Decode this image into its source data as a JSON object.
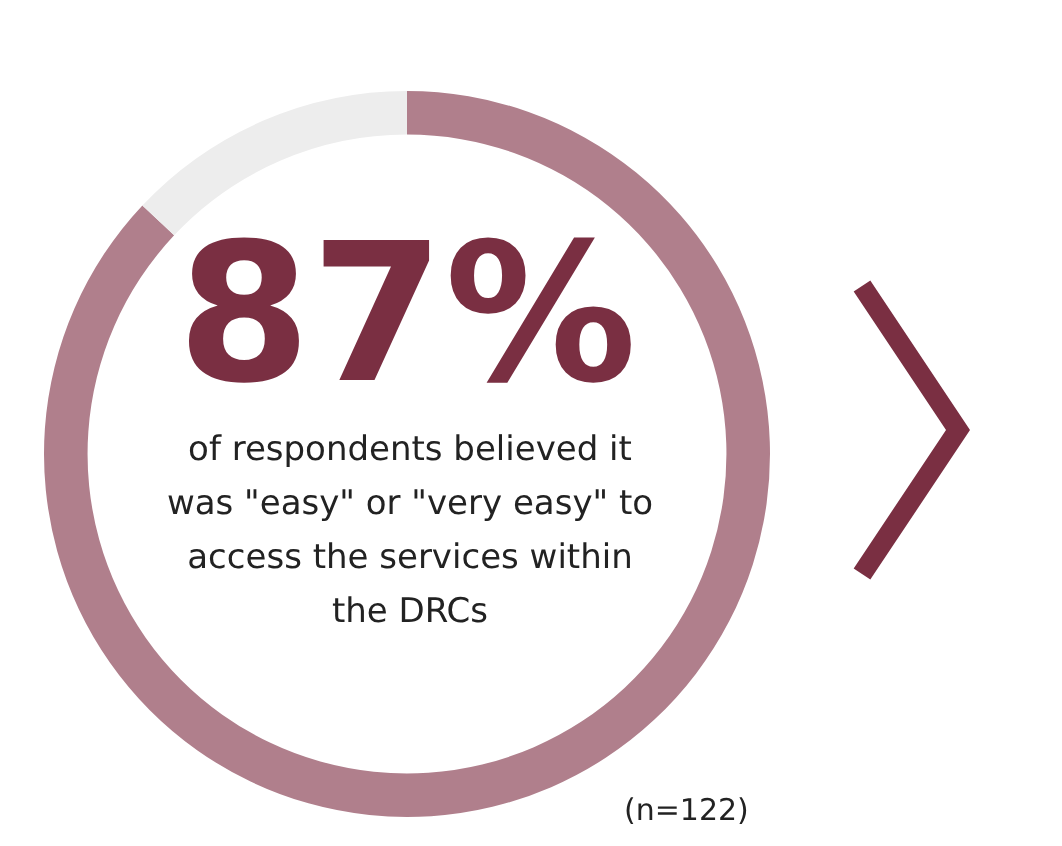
{
  "chart_data": {
    "type": "donut",
    "categories": [
      null,
      null
    ],
    "values": [
      87,
      13
    ],
    "colors": [
      "#b07f8c",
      "#ededed"
    ],
    "value_labels": [
      "87%",
      null
    ],
    "annotations": [
      "of respondents believed it was \"easy\" or \"very easy\" to access the services within the DRCs",
      "(n=122)"
    ]
  }
}
